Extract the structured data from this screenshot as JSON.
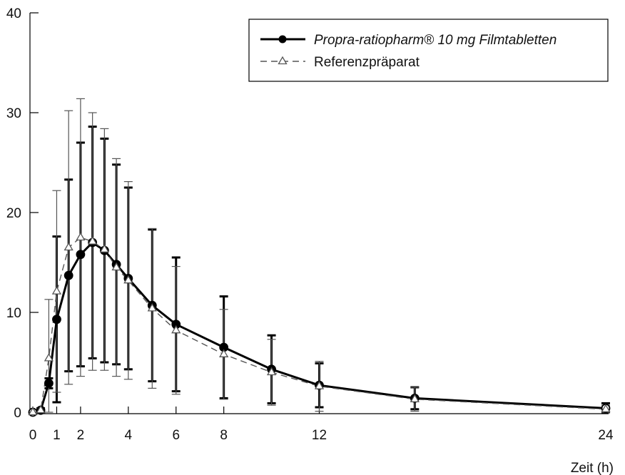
{
  "chart_data": {
    "type": "line",
    "title": "",
    "xlabel": "Zeit (h)",
    "ylabel": "",
    "xlim": [
      0,
      24
    ],
    "ylim": [
      0,
      40
    ],
    "x_ticks": [
      0,
      1,
      2,
      4,
      6,
      8,
      12,
      24
    ],
    "y_ticks": [
      0,
      10,
      20,
      30,
      40
    ],
    "grid": false,
    "legend_position": "top-right",
    "series": [
      {
        "name": "Propra-ratiopharm® 10 mg Filmtabletten",
        "style": "solid-filled-circle",
        "color": "#000000",
        "x": [
          0,
          0.33,
          0.67,
          1,
          1.5,
          2,
          2.5,
          3,
          3.5,
          4,
          5,
          6,
          8,
          10,
          12,
          16,
          24
        ],
        "y": [
          0,
          0.2,
          2.9,
          9.3,
          13.7,
          15.8,
          17.0,
          16.2,
          14.8,
          13.4,
          10.7,
          8.8,
          6.5,
          4.3,
          2.7,
          1.4,
          0.4
        ],
        "error": [
          0,
          0.2,
          0.5,
          8.3,
          9.6,
          11.2,
          11.6,
          11.2,
          10.0,
          9.1,
          7.6,
          6.7,
          5.1,
          3.4,
          2.2,
          1.1,
          0.5
        ]
      },
      {
        "name": "Referenzpräparat",
        "style": "dashed-open-triangle",
        "color": "#555555",
        "x": [
          0,
          0.33,
          0.67,
          1,
          1.5,
          2,
          2.5,
          3,
          3.5,
          4,
          5,
          6,
          8,
          10,
          12,
          16,
          24
        ],
        "y": [
          0,
          0.2,
          5.4,
          12.1,
          16.5,
          17.5,
          17.1,
          16.3,
          14.5,
          13.2,
          10.4,
          8.2,
          5.8,
          4.0,
          2.6,
          1.3,
          0.3
        ],
        "error": [
          0,
          0.2,
          5.9,
          10.1,
          13.7,
          13.9,
          12.9,
          12.1,
          10.9,
          9.9,
          8.0,
          6.4,
          4.5,
          3.3,
          2.5,
          1.2,
          0.4
        ]
      }
    ]
  }
}
